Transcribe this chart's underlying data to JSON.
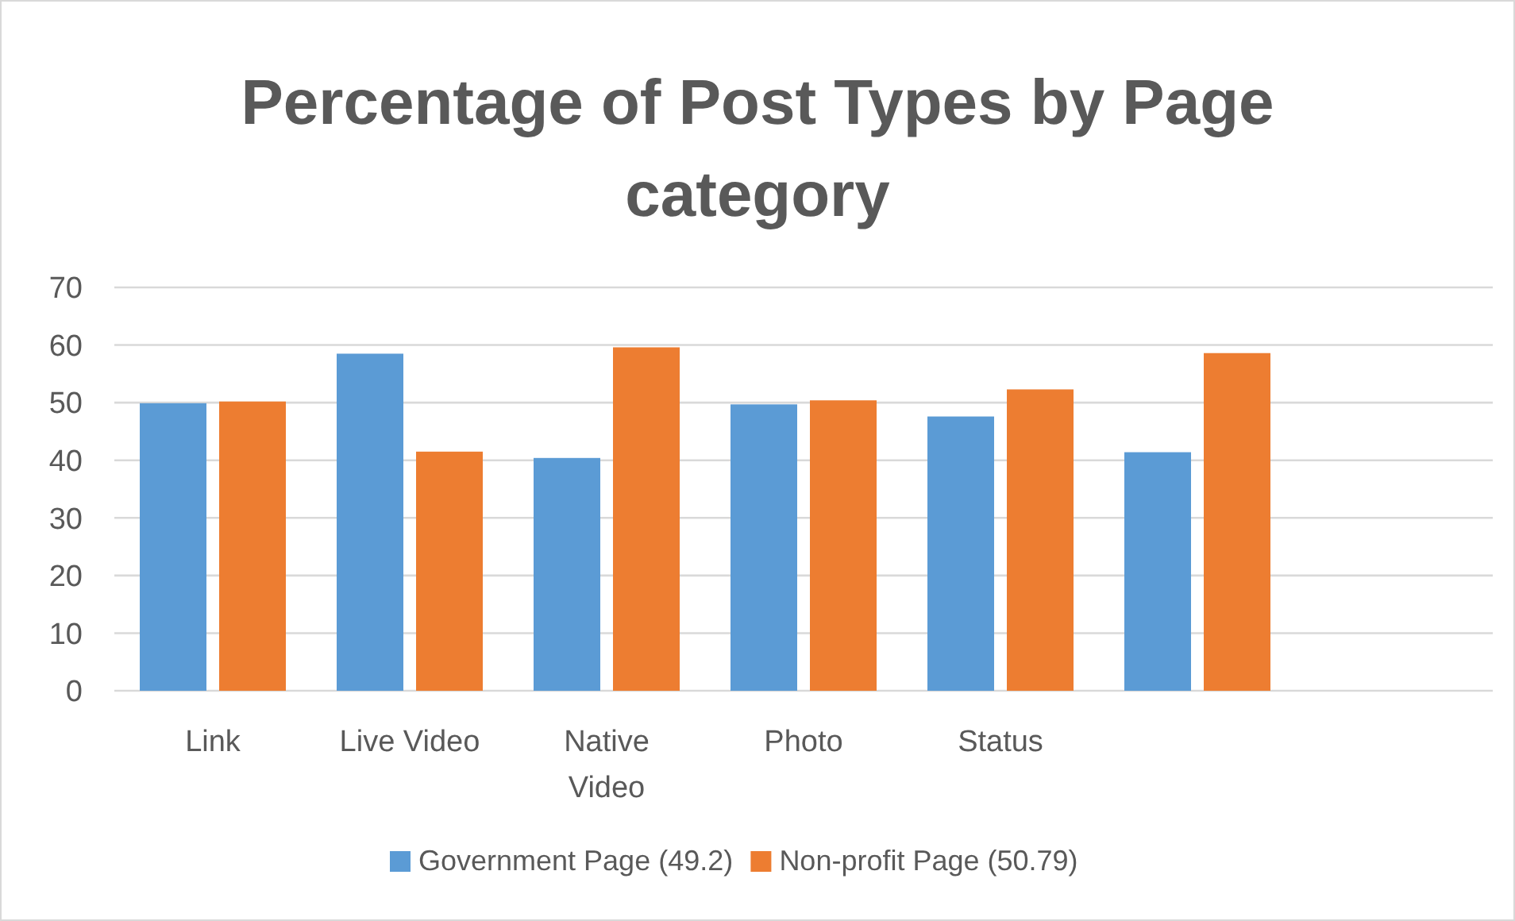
{
  "chart_data": {
    "type": "bar",
    "title": "Percentage of Post Types by Page category",
    "categories": [
      "Link",
      "Live Video",
      "Native Video",
      "Photo",
      "Status",
      null,
      null
    ],
    "series": [
      {
        "name": "Government Page (49.2)",
        "color": "#5b9bd5",
        "values": [
          49.9,
          58.5,
          40.4,
          49.7,
          47.6,
          41.4,
          null
        ]
      },
      {
        "name": "Non-profit Page (50.79)",
        "color": "#ed7d31",
        "values": [
          50.2,
          41.5,
          59.6,
          50.4,
          52.3,
          58.6,
          null
        ]
      }
    ],
    "ylim": [
      0,
      70
    ],
    "yticks": [
      0,
      10,
      20,
      30,
      40,
      50,
      60,
      70
    ],
    "grid": "y",
    "legend": "bottom"
  }
}
